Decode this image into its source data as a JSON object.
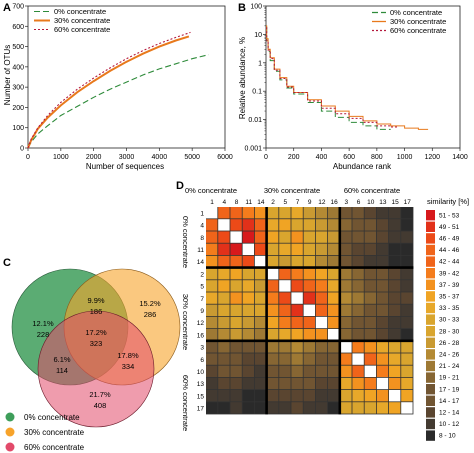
{
  "colors": {
    "pct0": "#2e8b3a",
    "pct30": "#e8791c",
    "pct60": "#b4183c",
    "venn0": "#3e9e5a",
    "venn30": "#f7a32a",
    "venn60": "#e24a6a",
    "heat_scale": [
      "#d7191c",
      "#e2311a",
      "#ec4a18",
      "#f0641a",
      "#f47c1c",
      "#f3921f",
      "#f0a424",
      "#e7a82a",
      "#d9a52e",
      "#c99a32",
      "#b48a34",
      "#9e7934",
      "#876633",
      "#715532",
      "#5a4530",
      "#433a31",
      "#2a2a2a"
    ]
  },
  "panels": {
    "A": {
      "letter": "A",
      "chart_data": {
        "type": "line",
        "xlabel": "Number of sequences",
        "ylabel": "Number of OTUs",
        "xlim": [
          0,
          6000
        ],
        "ylim": [
          0,
          700
        ],
        "xticks": [
          "0",
          "1000",
          "2000",
          "3000",
          "4000",
          "5000",
          "6000"
        ],
        "yticks": [
          "0",
          "100",
          "200",
          "300",
          "400",
          "500",
          "600",
          "700"
        ],
        "legend_position": "top-left",
        "series": [
          {
            "name": "0% concentrate",
            "color": "#2e8b3a",
            "dash": "6,3",
            "x": [
              0,
              100,
              300,
              600,
              1000,
              1500,
              2000,
              2500,
              3000,
              3500,
              4000,
              4500,
              5000,
              5500
            ],
            "y": [
              0,
              30,
              70,
              110,
              160,
              205,
              250,
              290,
              325,
              360,
              390,
              415,
              440,
              460
            ]
          },
          {
            "name": "30% concentrate",
            "color": "#e8791c",
            "dash": "",
            "x": [
              0,
              100,
              300,
              600,
              1000,
              1500,
              2000,
              2500,
              3000,
              3500,
              4000,
              4500,
              4900
            ],
            "y": [
              0,
              40,
              95,
              150,
              210,
              275,
              330,
              380,
              425,
              465,
              500,
              530,
              550
            ]
          },
          {
            "name": "60% concentrate",
            "color": "#b4183c",
            "dash": "2,2",
            "x": [
              0,
              100,
              300,
              600,
              1000,
              1500,
              2000,
              2500,
              3000,
              3500,
              4000,
              4500,
              4950
            ],
            "y": [
              0,
              45,
              100,
              160,
              225,
              290,
              345,
              395,
              440,
              480,
              515,
              545,
              570
            ]
          }
        ]
      }
    },
    "B": {
      "letter": "B",
      "chart_data": {
        "type": "line",
        "xlabel": "Abundance rank",
        "ylabel": "Relative abundance, %",
        "xlim": [
          0,
          1400
        ],
        "ylim_log10": [
          -3,
          2
        ],
        "yscale": "log",
        "xticks": [
          "0",
          "200",
          "400",
          "600",
          "800",
          "1000",
          "1200",
          "1400"
        ],
        "yticks": [
          "0.001",
          "0.01",
          "0.1",
          "1",
          "10",
          "100"
        ],
        "legend_position": "top-right",
        "series": [
          {
            "name": "0% concentrate",
            "color": "#2e8b3a",
            "dash": "6,3",
            "x": [
              1,
              5,
              15,
              30,
              60,
              100,
              150,
              200,
              300,
              400,
              500,
              600,
              700,
              800,
              900
            ],
            "y": [
              18,
              6,
              2.5,
              1.2,
              0.5,
              0.25,
              0.13,
              0.08,
              0.04,
              0.02,
              0.012,
              0.008,
              0.006,
              0.0045,
              0.0045
            ]
          },
          {
            "name": "30% concentrate",
            "color": "#e8791c",
            "dash": "",
            "x": [
              1,
              5,
              15,
              30,
              60,
              100,
              150,
              200,
              300,
              400,
              500,
              600,
              700,
              800,
              900,
              1000,
              1100,
              1170
            ],
            "y": [
              20,
              7,
              3,
              1.5,
              0.6,
              0.3,
              0.15,
              0.09,
              0.05,
              0.03,
              0.02,
              0.013,
              0.009,
              0.007,
              0.006,
              0.005,
              0.0045,
              0.0045
            ]
          },
          {
            "name": "60% concentrate",
            "color": "#b4183c",
            "dash": "2,2",
            "x": [
              1,
              5,
              15,
              30,
              60,
              100,
              150,
              200,
              300,
              400,
              500,
              600,
              700,
              800,
              900,
              950
            ],
            "y": [
              17,
              6,
              2.8,
              1.4,
              0.55,
              0.28,
              0.14,
              0.09,
              0.045,
              0.025,
              0.016,
              0.011,
              0.008,
              0.006,
              0.0055,
              0.005
            ]
          }
        ]
      }
    },
    "C": {
      "letter": "C",
      "venn": {
        "regions": [
          {
            "id": "only0",
            "pct": "12.1%",
            "count": "228"
          },
          {
            "id": "0and30",
            "pct": "9.9%",
            "count": "186"
          },
          {
            "id": "only30",
            "pct": "15.2%",
            "count": "286"
          },
          {
            "id": "all",
            "pct": "17.2%",
            "count": "323"
          },
          {
            "id": "0and60",
            "pct": "6.1%",
            "count": "114"
          },
          {
            "id": "30and60",
            "pct": "17.8%",
            "count": "334"
          },
          {
            "id": "only60",
            "pct": "21.7%",
            "count": "408"
          }
        ],
        "legend": [
          {
            "label": "0% concentrate",
            "color": "#3e9e5a"
          },
          {
            "label": "30% concentrate",
            "color": "#f7a32a"
          },
          {
            "label": "60% concentrate",
            "color": "#e24a6a"
          }
        ]
      }
    },
    "D": {
      "letter": "D",
      "chart_data": {
        "type": "heatmap",
        "group_labels": [
          "0% concentrate",
          "30% concentrate",
          "60% concentrate"
        ],
        "col_labels": [
          "1",
          "4",
          "8",
          "11",
          "14",
          "2",
          "5",
          "7",
          "9",
          "12",
          "16",
          "3",
          "6",
          "10",
          "13",
          "15",
          "17"
        ],
        "row_labels": [
          "1",
          "4",
          "8",
          "11",
          "14",
          "2",
          "5",
          "7",
          "9",
          "12",
          "16",
          "3",
          "6",
          "10",
          "13",
          "15",
          "17"
        ],
        "legend_title": "similarity [%]",
        "legend_labels": [
          "51 - 53",
          "49 - 51",
          "46 - 49",
          "44 - 46",
          "42 - 44",
          "39 - 42",
          "37 - 39",
          "35 - 37",
          "33 - 35",
          "30 - 33",
          "28 - 30",
          "26 - 28",
          "24 - 26",
          "21 - 24",
          "19 - 21",
          "17 - 19",
          "14 - 17",
          "12 - 14",
          "10 - 12",
          "8 - 10"
        ],
        "diagonal": "white",
        "values": [
          [
            null,
            40,
            42,
            38,
            36,
            30,
            28,
            32,
            26,
            24,
            22,
            18,
            16,
            14,
            12,
            12,
            10
          ],
          [
            40,
            null,
            44,
            46,
            40,
            32,
            34,
            30,
            28,
            26,
            24,
            20,
            18,
            16,
            14,
            12,
            10
          ],
          [
            42,
            44,
            null,
            48,
            42,
            34,
            30,
            36,
            28,
            28,
            26,
            18,
            16,
            16,
            14,
            12,
            12
          ],
          [
            38,
            46,
            48,
            null,
            44,
            30,
            32,
            34,
            30,
            26,
            24,
            16,
            14,
            14,
            12,
            10,
            10
          ],
          [
            36,
            40,
            42,
            44,
            null,
            28,
            26,
            30,
            28,
            24,
            22,
            16,
            14,
            12,
            12,
            10,
            10
          ],
          [
            30,
            32,
            34,
            30,
            28,
            null,
            40,
            38,
            36,
            34,
            30,
            22,
            20,
            18,
            16,
            14,
            12
          ],
          [
            28,
            34,
            30,
            32,
            26,
            40,
            null,
            44,
            42,
            38,
            32,
            22,
            20,
            18,
            16,
            14,
            12
          ],
          [
            32,
            30,
            36,
            34,
            30,
            38,
            44,
            null,
            46,
            40,
            34,
            24,
            22,
            20,
            18,
            14,
            14
          ],
          [
            26,
            28,
            28,
            30,
            28,
            36,
            42,
            46,
            null,
            40,
            36,
            22,
            20,
            18,
            16,
            14,
            12
          ],
          [
            24,
            26,
            28,
            26,
            24,
            34,
            38,
            40,
            40,
            null,
            36,
            20,
            18,
            16,
            14,
            12,
            12
          ],
          [
            22,
            24,
            26,
            24,
            22,
            30,
            32,
            34,
            36,
            36,
            null,
            20,
            18,
            16,
            14,
            12,
            10
          ],
          [
            18,
            20,
            18,
            16,
            16,
            22,
            22,
            24,
            22,
            20,
            20,
            null,
            38,
            36,
            32,
            30,
            28
          ],
          [
            16,
            18,
            16,
            14,
            14,
            20,
            20,
            22,
            20,
            18,
            18,
            38,
            null,
            40,
            36,
            32,
            30
          ],
          [
            14,
            16,
            16,
            14,
            12,
            18,
            18,
            20,
            18,
            16,
            16,
            36,
            40,
            null,
            38,
            34,
            30
          ],
          [
            12,
            14,
            14,
            12,
            12,
            16,
            16,
            18,
            16,
            14,
            14,
            32,
            36,
            38,
            null,
            36,
            32
          ],
          [
            12,
            12,
            12,
            10,
            10,
            14,
            14,
            14,
            14,
            12,
            12,
            30,
            32,
            34,
            36,
            null,
            34
          ],
          [
            10,
            10,
            12,
            10,
            10,
            12,
            12,
            14,
            12,
            12,
            10,
            28,
            30,
            30,
            32,
            34,
            null
          ]
        ]
      }
    }
  }
}
